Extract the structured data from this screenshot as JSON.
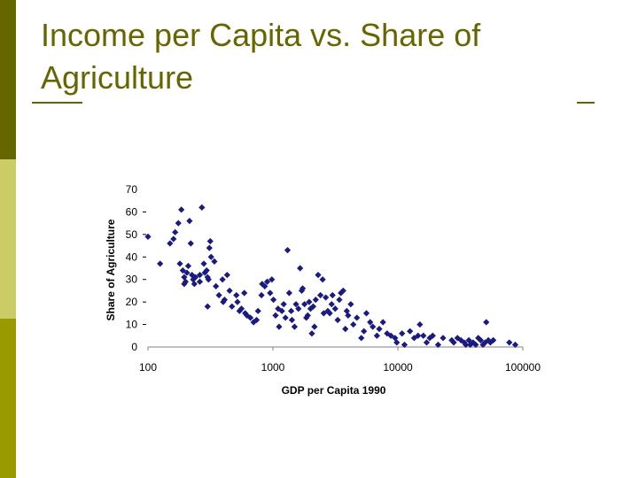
{
  "slide": {
    "title": "Income per Capita vs. Share of Agriculture",
    "accent_dark": "#666600",
    "accent_light": "#cccc66",
    "accent_mid": "#999900"
  },
  "chart_data": {
    "type": "scatter",
    "title": "",
    "xlabel": "GDP per Capita 1990",
    "ylabel": "Share of Agriculture",
    "x_scale": "log",
    "xlim": [
      100,
      100000
    ],
    "ylim": [
      0,
      70
    ],
    "xticks": [
      "100",
      "1000",
      "10000",
      "100000"
    ],
    "yticks": [
      "0",
      "10",
      "20",
      "30",
      "40",
      "50",
      "60",
      "70"
    ],
    "grid": false,
    "legend": "none",
    "marker": "diamond",
    "marker_color": "#1a1a80",
    "series": [
      {
        "points": [
          [
            100,
            49
          ],
          [
            125,
            37
          ],
          [
            150,
            46
          ],
          [
            160,
            48
          ],
          [
            165,
            51
          ],
          [
            175,
            55
          ],
          [
            180,
            37
          ],
          [
            185,
            61
          ],
          [
            190,
            34
          ],
          [
            195,
            31
          ],
          [
            195,
            28
          ],
          [
            200,
            29
          ],
          [
            205,
            33
          ],
          [
            210,
            36
          ],
          [
            215,
            56
          ],
          [
            220,
            46
          ],
          [
            225,
            32
          ],
          [
            230,
            30
          ],
          [
            235,
            28
          ],
          [
            240,
            31
          ],
          [
            260,
            29
          ],
          [
            270,
            62
          ],
          [
            280,
            37
          ],
          [
            285,
            33
          ],
          [
            295,
            34
          ],
          [
            300,
            31
          ],
          [
            305,
            30
          ],
          [
            310,
            44
          ],
          [
            315,
            47
          ],
          [
            320,
            40
          ],
          [
            340,
            38
          ],
          [
            350,
            27
          ],
          [
            260,
            32
          ],
          [
            370,
            23
          ],
          [
            395,
            30
          ],
          [
            400,
            20
          ],
          [
            300,
            18
          ],
          [
            410,
            21
          ],
          [
            430,
            32
          ],
          [
            450,
            25
          ],
          [
            470,
            18
          ],
          [
            510,
            23
          ],
          [
            520,
            20
          ],
          [
            540,
            16
          ],
          [
            560,
            17
          ],
          [
            590,
            24
          ],
          [
            600,
            15
          ],
          [
            620,
            14
          ],
          [
            660,
            13
          ],
          [
            700,
            11
          ],
          [
            740,
            12
          ],
          [
            760,
            16
          ],
          [
            810,
            23
          ],
          [
            820,
            28
          ],
          [
            860,
            27
          ],
          [
            900,
            29
          ],
          [
            950,
            24
          ],
          [
            980,
            30
          ],
          [
            1010,
            21
          ],
          [
            1050,
            14
          ],
          [
            1100,
            17
          ],
          [
            1120,
            9
          ],
          [
            1180,
            16
          ],
          [
            1220,
            19
          ],
          [
            1260,
            13
          ],
          [
            1310,
            43
          ],
          [
            1350,
            24
          ],
          [
            1400,
            16
          ],
          [
            1420,
            12
          ],
          [
            1490,
            9
          ],
          [
            1530,
            19
          ],
          [
            1600,
            17
          ],
          [
            1650,
            35
          ],
          [
            1700,
            25
          ],
          [
            1730,
            26
          ],
          [
            1790,
            19
          ],
          [
            1850,
            13
          ],
          [
            1900,
            14
          ],
          [
            1950,
            20
          ],
          [
            2000,
            17
          ],
          [
            2050,
            6
          ],
          [
            2100,
            18
          ],
          [
            2150,
            9
          ],
          [
            2200,
            21
          ],
          [
            2300,
            32
          ],
          [
            2400,
            23
          ],
          [
            2500,
            30
          ],
          [
            2550,
            15
          ],
          [
            2650,
            22
          ],
          [
            2750,
            16
          ],
          [
            2850,
            15
          ],
          [
            2950,
            19
          ],
          [
            3000,
            23
          ],
          [
            3150,
            17
          ],
          [
            3300,
            12
          ],
          [
            3400,
            21
          ],
          [
            3500,
            24
          ],
          [
            3650,
            25
          ],
          [
            3800,
            8
          ],
          [
            3900,
            16
          ],
          [
            4000,
            14
          ],
          [
            4200,
            19
          ],
          [
            4400,
            10
          ],
          [
            4700,
            13
          ],
          [
            5100,
            4
          ],
          [
            5350,
            7
          ],
          [
            5600,
            15
          ],
          [
            6000,
            11
          ],
          [
            6300,
            9
          ],
          [
            6800,
            5
          ],
          [
            7100,
            8
          ],
          [
            7600,
            11
          ],
          [
            8200,
            6
          ],
          [
            8800,
            5
          ],
          [
            9500,
            4
          ],
          [
            9800,
            2
          ],
          [
            10800,
            6
          ],
          [
            11300,
            1
          ],
          [
            12500,
            7
          ],
          [
            13500,
            4
          ],
          [
            14500,
            5
          ],
          [
            15000,
            10
          ],
          [
            16000,
            5
          ],
          [
            17000,
            2
          ],
          [
            18000,
            4
          ],
          [
            19000,
            5
          ],
          [
            21000,
            1
          ],
          [
            23000,
            4
          ],
          [
            27000,
            3
          ],
          [
            28000,
            2
          ],
          [
            30000,
            4
          ],
          [
            32000,
            3
          ],
          [
            34000,
            2
          ],
          [
            35000,
            1
          ],
          [
            37000,
            3
          ],
          [
            38000,
            1
          ],
          [
            40000,
            2
          ],
          [
            42000,
            1
          ],
          [
            44000,
            4
          ],
          [
            46000,
            3
          ],
          [
            48000,
            1
          ],
          [
            50000,
            2
          ],
          [
            53000,
            3
          ],
          [
            55000,
            2
          ],
          [
            58000,
            3
          ],
          [
            78000,
            2
          ],
          [
            87000,
            1
          ],
          [
            51000,
            11
          ]
        ]
      }
    ]
  }
}
